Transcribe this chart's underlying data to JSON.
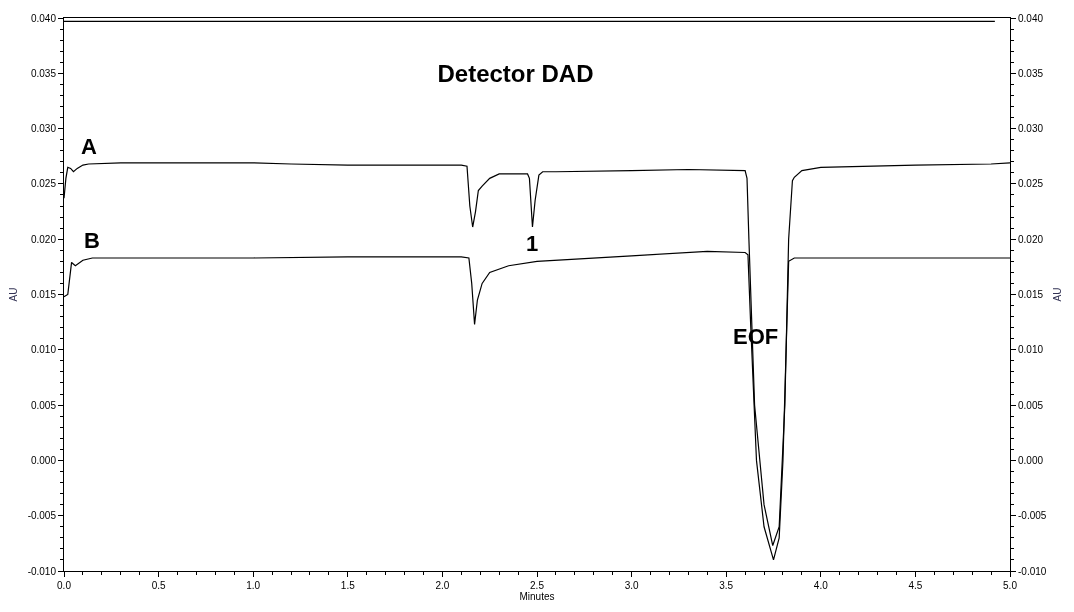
{
  "chart_data": {
    "type": "line",
    "title": "Detector DAD",
    "xlabel": "Minutes",
    "ylabel": "AU",
    "y2label": "AU",
    "series": [
      {
        "name": "A",
        "color": "#000000",
        "x": [
          0.0,
          0.01,
          0.02,
          0.035,
          0.05,
          0.07,
          0.1,
          0.13,
          0.3,
          0.5,
          0.8,
          1.0,
          1.2,
          1.5,
          1.8,
          2.0,
          2.1,
          2.13,
          2.145,
          2.16,
          2.175,
          2.19,
          2.21,
          2.25,
          2.3,
          2.4,
          2.45,
          2.46,
          2.476,
          2.49,
          2.51,
          2.53,
          2.6,
          3.0,
          3.3,
          3.6,
          3.61,
          3.62,
          3.65,
          3.7,
          3.746,
          3.78,
          3.81,
          3.83,
          3.85,
          3.86,
          3.9,
          4.0,
          4.5,
          4.9,
          5.0
        ],
        "values": [
          0.0237,
          0.0255,
          0.0265,
          0.0264,
          0.0261,
          0.0264,
          0.0267,
          0.0268,
          0.0269,
          0.0269,
          0.0269,
          0.0269,
          0.0268,
          0.0267,
          0.0267,
          0.0267,
          0.0267,
          0.0266,
          0.023,
          0.0211,
          0.0225,
          0.0244,
          0.0248,
          0.0255,
          0.0259,
          0.0259,
          0.0259,
          0.0255,
          0.0211,
          0.0235,
          0.0258,
          0.0261,
          0.0261,
          0.0262,
          0.0263,
          0.0262,
          0.0255,
          0.02,
          0.005,
          -0.004,
          -0.0077,
          -0.006,
          0.005,
          0.02,
          0.0253,
          0.0256,
          0.0262,
          0.0265,
          0.0267,
          0.0268,
          0.0269
        ]
      },
      {
        "name": "B",
        "color": "#000000",
        "x": [
          0.0,
          0.02,
          0.04,
          0.06,
          0.1,
          0.15,
          0.5,
          1.0,
          1.5,
          2.0,
          2.1,
          2.14,
          2.155,
          2.17,
          2.185,
          2.21,
          2.25,
          2.35,
          2.5,
          3.0,
          3.4,
          3.6,
          3.615,
          3.63,
          3.66,
          3.7,
          3.75,
          3.78,
          3.8,
          3.82,
          3.83,
          3.86,
          4.0,
          4.5,
          5.0
        ],
        "values": [
          0.0148,
          0.015,
          0.0179,
          0.0176,
          0.0181,
          0.0183,
          0.0183,
          0.0183,
          0.0184,
          0.0184,
          0.0184,
          0.0183,
          0.016,
          0.0123,
          0.0145,
          0.016,
          0.017,
          0.0176,
          0.018,
          0.0185,
          0.0189,
          0.0188,
          0.0186,
          0.012,
          0.0,
          -0.006,
          -0.009,
          -0.007,
          0.0,
          0.012,
          0.018,
          0.0183,
          0.0183,
          0.0183,
          0.0183
        ]
      },
      {
        "color": "#000000",
        "x": [
          0.0,
          4.92
        ],
        "values": [
          0.0397,
          0.0397
        ]
      }
    ],
    "annotations": [
      {
        "text": "1",
        "x": 2.476,
        "y": 0.0211
      },
      "EOF"
    ],
    "xlim": [
      0.0,
      5.0
    ],
    "xticks": [
      {
        "value": 0,
        "label": "0.0"
      },
      0.5,
      {
        "value": 1,
        "label": "1.0"
      },
      1.5,
      {
        "value": 2,
        "label": "2.0"
      },
      2.5,
      {
        "value": 3,
        "label": "3.0"
      },
      3.5,
      {
        "value": 4,
        "label": "4.0"
      },
      4.5,
      {
        "value": 5,
        "label": "5.0"
      }
    ],
    "ylim": [
      -0.01,
      0.04
    ],
    "yticks": [
      {
        "value": -0.01,
        "label": "-0.010"
      },
      -0.005,
      {
        "value": 0,
        "label": "0.000"
      },
      0.005,
      {
        "value": 0.01,
        "label": "0.010"
      },
      0.015,
      {
        "value": 0.02,
        "label": "0.020"
      },
      0.025,
      {
        "value": 0.03,
        "label": "0.030"
      },
      0.035,
      {
        "value": 0.04,
        "label": "0.040"
      }
    ],
    "y2lim": [
      -0.01,
      0.04
    ],
    "y2ticks": [
      {
        "value": -0.01,
        "label": "-0.010"
      },
      -0.005,
      {
        "value": 0,
        "label": "0.000"
      },
      0.005,
      {
        "value": 0.01,
        "label": "0.010"
      },
      0.015,
      {
        "value": 0.02,
        "label": "0.020"
      },
      0.025,
      {
        "value": 0.03,
        "label": "0.030"
      },
      0.035,
      {
        "value": 0.04,
        "label": "0.040"
      }
    ],
    "grid": false,
    "legend": "top left",
    "marker": "none",
    "line_style": "solid"
  }
}
